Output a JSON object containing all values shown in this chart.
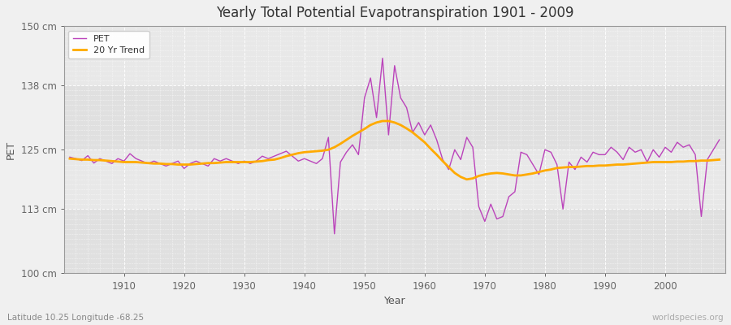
{
  "title": "Yearly Total Potential Evapotranspiration 1901 - 2009",
  "xlabel": "Year",
  "ylabel": "PET",
  "subtitle": "Latitude 10.25 Longitude -68.25",
  "watermark": "worldspecies.org",
  "background_color": "#f0f0f0",
  "plot_bg_color": "#e8e8e8",
  "pet_color": "#bb44bb",
  "trend_color": "#ffaa00",
  "ylim": [
    100,
    150
  ],
  "yticks": [
    100,
    113,
    125,
    138,
    150
  ],
  "ytick_labels": [
    "100 cm",
    "113 cm",
    "125 cm",
    "138 cm",
    "150 cm"
  ],
  "xticks": [
    1910,
    1920,
    1930,
    1940,
    1950,
    1960,
    1970,
    1980,
    1990,
    2000
  ],
  "years": [
    1901,
    1902,
    1903,
    1904,
    1905,
    1906,
    1907,
    1908,
    1909,
    1910,
    1911,
    1912,
    1913,
    1914,
    1915,
    1916,
    1917,
    1918,
    1919,
    1920,
    1921,
    1922,
    1923,
    1924,
    1925,
    1926,
    1927,
    1928,
    1929,
    1930,
    1931,
    1932,
    1933,
    1934,
    1935,
    1936,
    1937,
    1938,
    1939,
    1940,
    1941,
    1942,
    1943,
    1944,
    1945,
    1946,
    1947,
    1948,
    1949,
    1950,
    1951,
    1952,
    1953,
    1954,
    1955,
    1956,
    1957,
    1958,
    1959,
    1960,
    1961,
    1962,
    1963,
    1964,
    1965,
    1966,
    1967,
    1968,
    1969,
    1970,
    1971,
    1972,
    1973,
    1974,
    1975,
    1976,
    1977,
    1978,
    1979,
    1980,
    1981,
    1982,
    1983,
    1984,
    1985,
    1986,
    1987,
    1988,
    1989,
    1990,
    1991,
    1992,
    1993,
    1994,
    1995,
    1996,
    1997,
    1998,
    1999,
    2000,
    2001,
    2002,
    2003,
    2004,
    2005,
    2006,
    2007,
    2008,
    2009
  ],
  "pet_values": [
    123.5,
    123.2,
    122.8,
    123.8,
    122.3,
    123.2,
    122.7,
    122.2,
    123.2,
    122.7,
    124.2,
    123.2,
    122.7,
    122.2,
    122.7,
    122.2,
    121.7,
    122.2,
    122.7,
    121.2,
    122.2,
    122.7,
    122.2,
    121.7,
    123.2,
    122.7,
    123.2,
    122.7,
    122.2,
    122.7,
    122.2,
    122.7,
    123.7,
    123.2,
    123.7,
    124.2,
    124.7,
    123.7,
    122.7,
    123.2,
    122.7,
    122.2,
    123.2,
    127.5,
    108.0,
    122.5,
    124.5,
    126.0,
    124.0,
    135.5,
    139.5,
    131.5,
    143.5,
    128.0,
    142.0,
    135.5,
    133.5,
    128.5,
    130.5,
    128.0,
    130.0,
    127.0,
    123.0,
    121.0,
    125.0,
    123.0,
    127.5,
    125.5,
    113.5,
    110.5,
    114.0,
    111.0,
    111.5,
    115.5,
    116.5,
    124.5,
    124.0,
    122.0,
    120.0,
    125.0,
    124.5,
    122.0,
    113.0,
    122.5,
    121.0,
    123.5,
    122.5,
    124.5,
    124.0,
    124.0,
    125.5,
    124.5,
    123.0,
    125.5,
    124.5,
    125.0,
    122.5,
    125.0,
    123.5,
    125.5,
    124.5,
    126.5,
    125.5,
    126.0,
    124.0,
    111.5,
    123.0,
    125.0,
    127.0
  ],
  "trend_values": [
    123.2,
    123.1,
    123.0,
    123.0,
    122.9,
    122.9,
    122.8,
    122.7,
    122.6,
    122.5,
    122.5,
    122.5,
    122.4,
    122.3,
    122.2,
    122.2,
    122.1,
    122.1,
    122.0,
    122.0,
    122.0,
    122.1,
    122.2,
    122.3,
    122.3,
    122.4,
    122.5,
    122.5,
    122.5,
    122.5,
    122.5,
    122.6,
    122.7,
    122.9,
    123.0,
    123.3,
    123.7,
    124.0,
    124.3,
    124.5,
    124.6,
    124.7,
    124.8,
    125.0,
    125.5,
    126.2,
    127.0,
    127.8,
    128.5,
    129.2,
    130.0,
    130.5,
    130.8,
    130.8,
    130.5,
    130.0,
    129.3,
    128.5,
    127.5,
    126.5,
    125.2,
    124.0,
    122.7,
    121.5,
    120.3,
    119.5,
    119.0,
    119.2,
    119.7,
    120.0,
    120.2,
    120.3,
    120.2,
    120.0,
    119.8,
    119.8,
    120.0,
    120.2,
    120.5,
    120.8,
    121.0,
    121.3,
    121.4,
    121.5,
    121.5,
    121.6,
    121.7,
    121.7,
    121.8,
    121.8,
    121.9,
    122.0,
    122.0,
    122.1,
    122.2,
    122.3,
    122.4,
    122.5,
    122.5,
    122.5,
    122.5,
    122.6,
    122.6,
    122.7,
    122.7,
    122.8,
    122.8,
    122.9,
    123.0
  ]
}
